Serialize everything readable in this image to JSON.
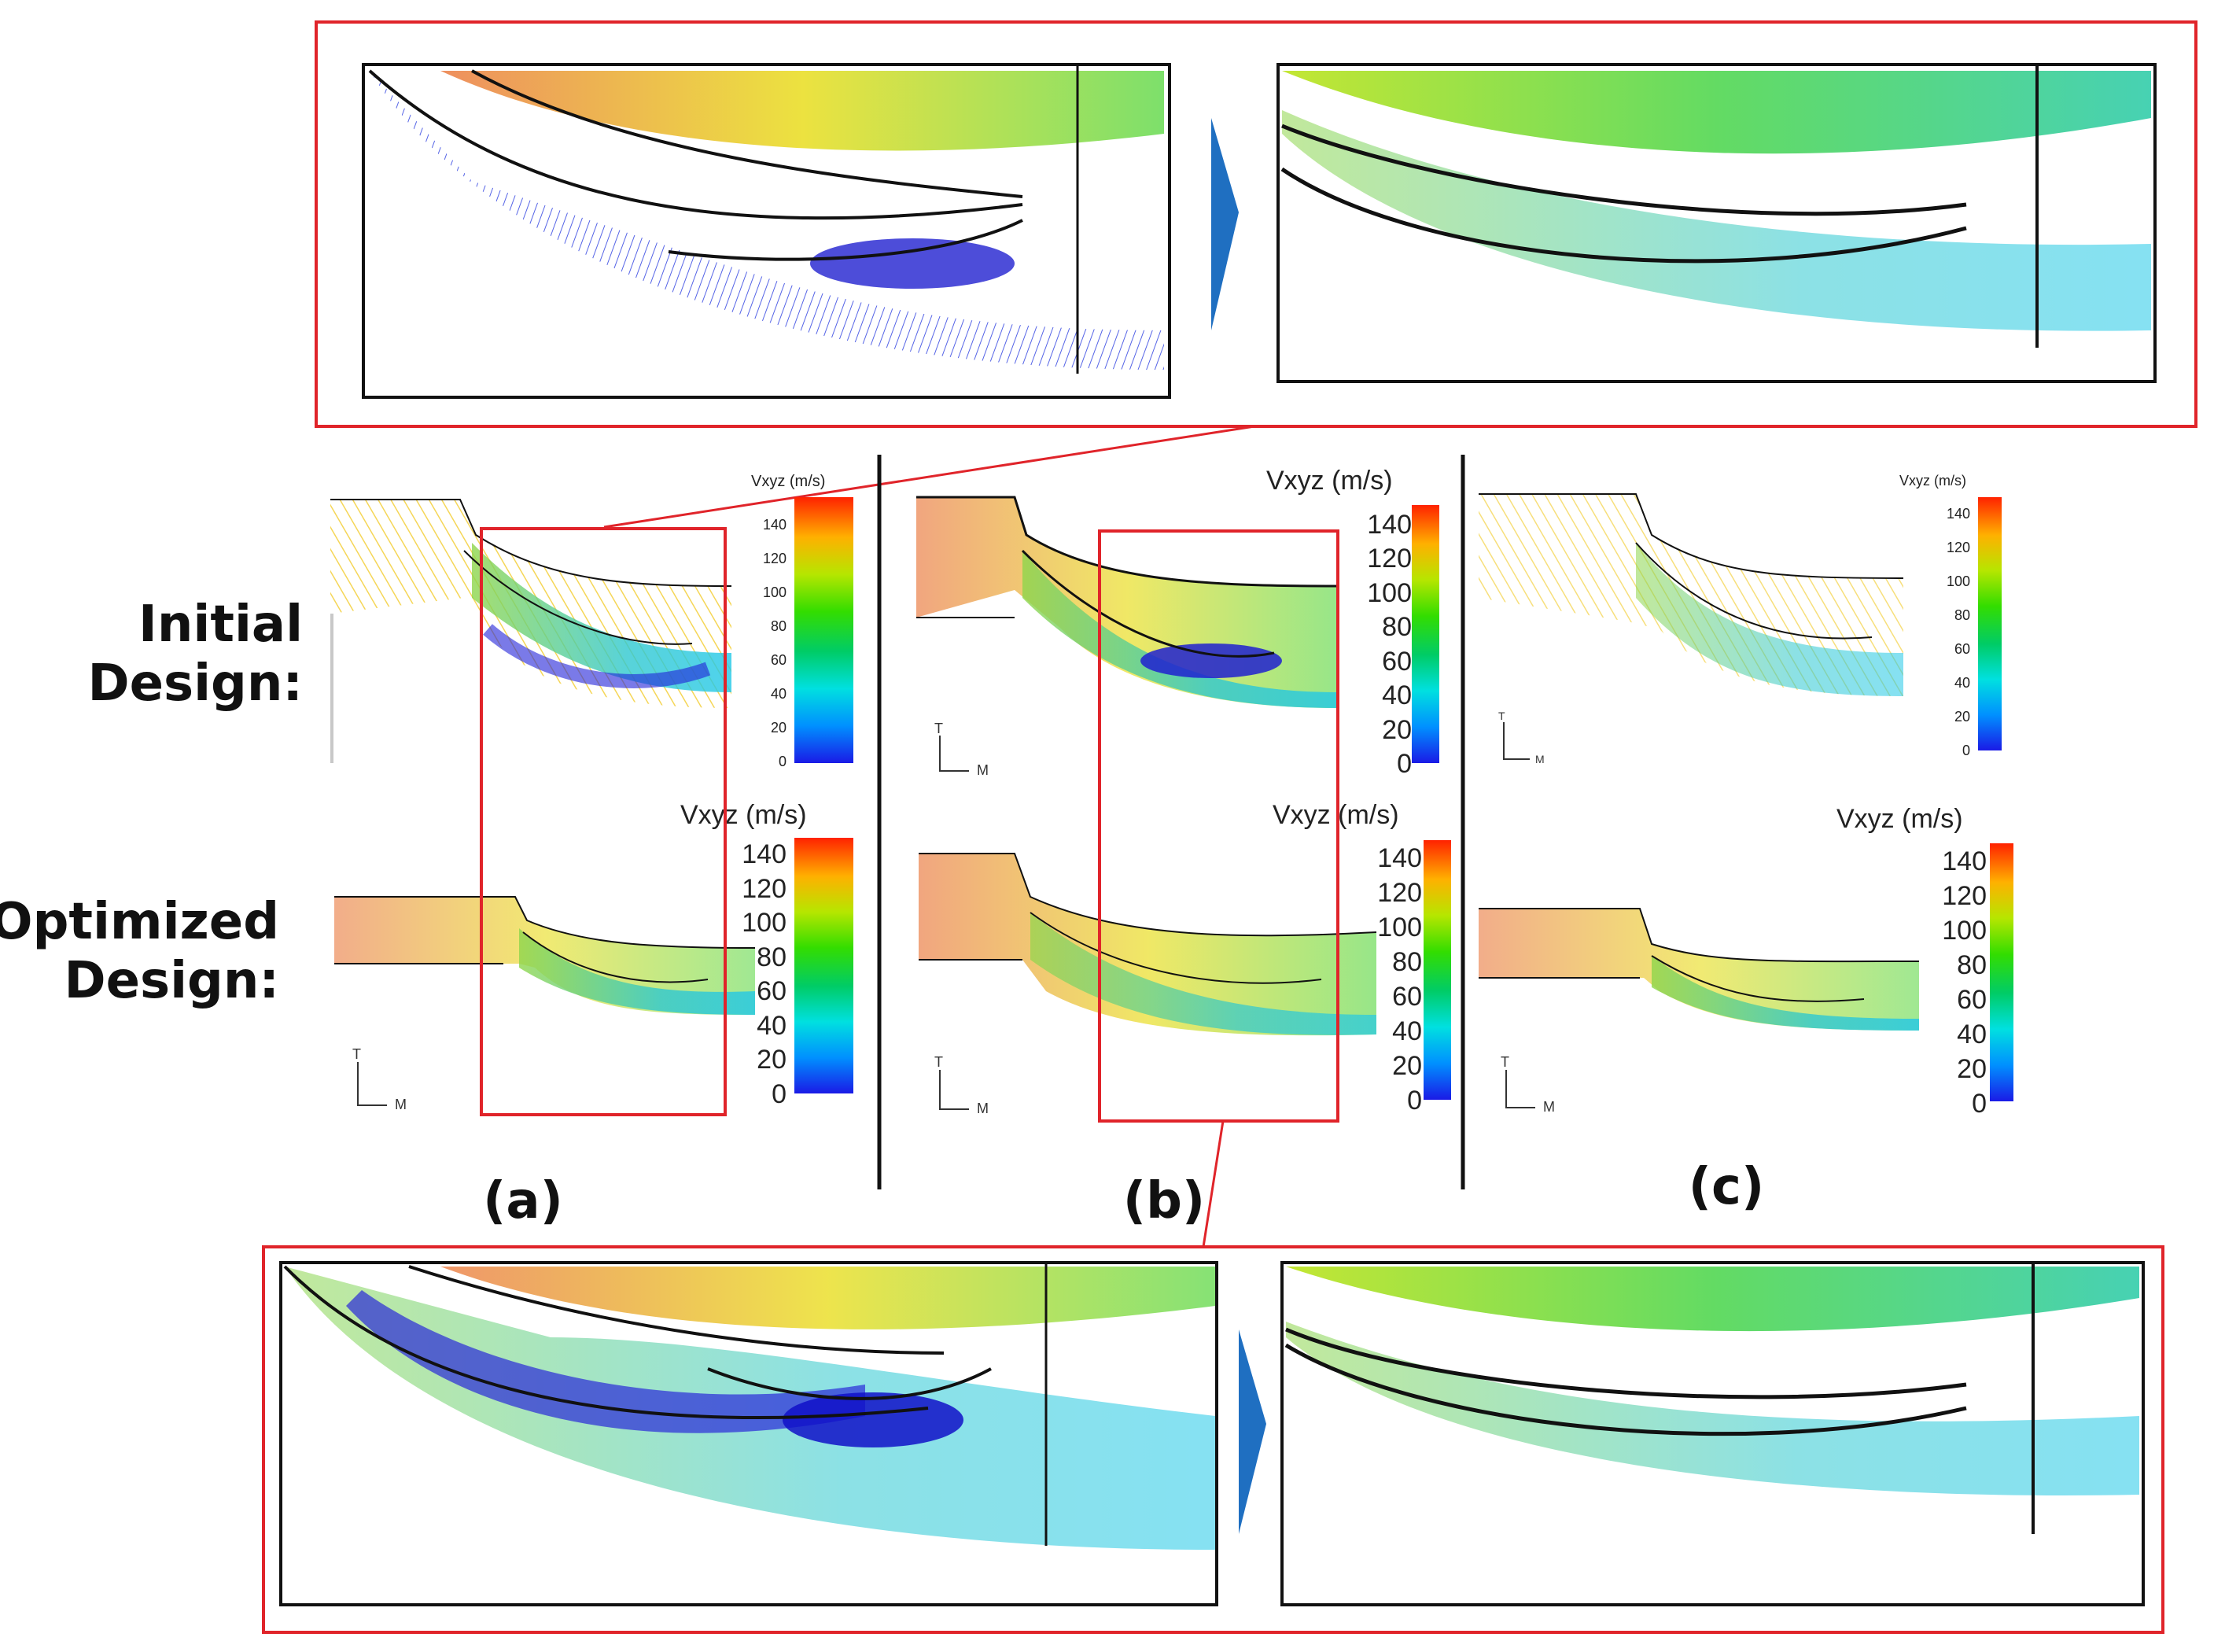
{
  "row_labels": {
    "initial_line1": "Initial",
    "initial_line2": "Design:",
    "optimized_line1": "Optimized",
    "optimized_line2": "Design:"
  },
  "panel_labels": [
    "(a)",
    "(b)",
    "(c)"
  ],
  "colorbar": {
    "title": "Vxyz (m/s)",
    "ticks": [
      "0",
      "20",
      "40",
      "60",
      "80",
      "100",
      "120",
      "140"
    ],
    "gradient": [
      "#1a1ae6",
      "#00a0ff",
      "#00e6e6",
      "#00cc66",
      "#66e600",
      "#e6e600",
      "#ff9900",
      "#ff2200"
    ]
  },
  "axis_labels": {
    "t": "T",
    "m": "M"
  },
  "colors": {
    "highlight": "#e0242a",
    "arrow": "#1f6fc1",
    "divider": "#111111"
  }
}
